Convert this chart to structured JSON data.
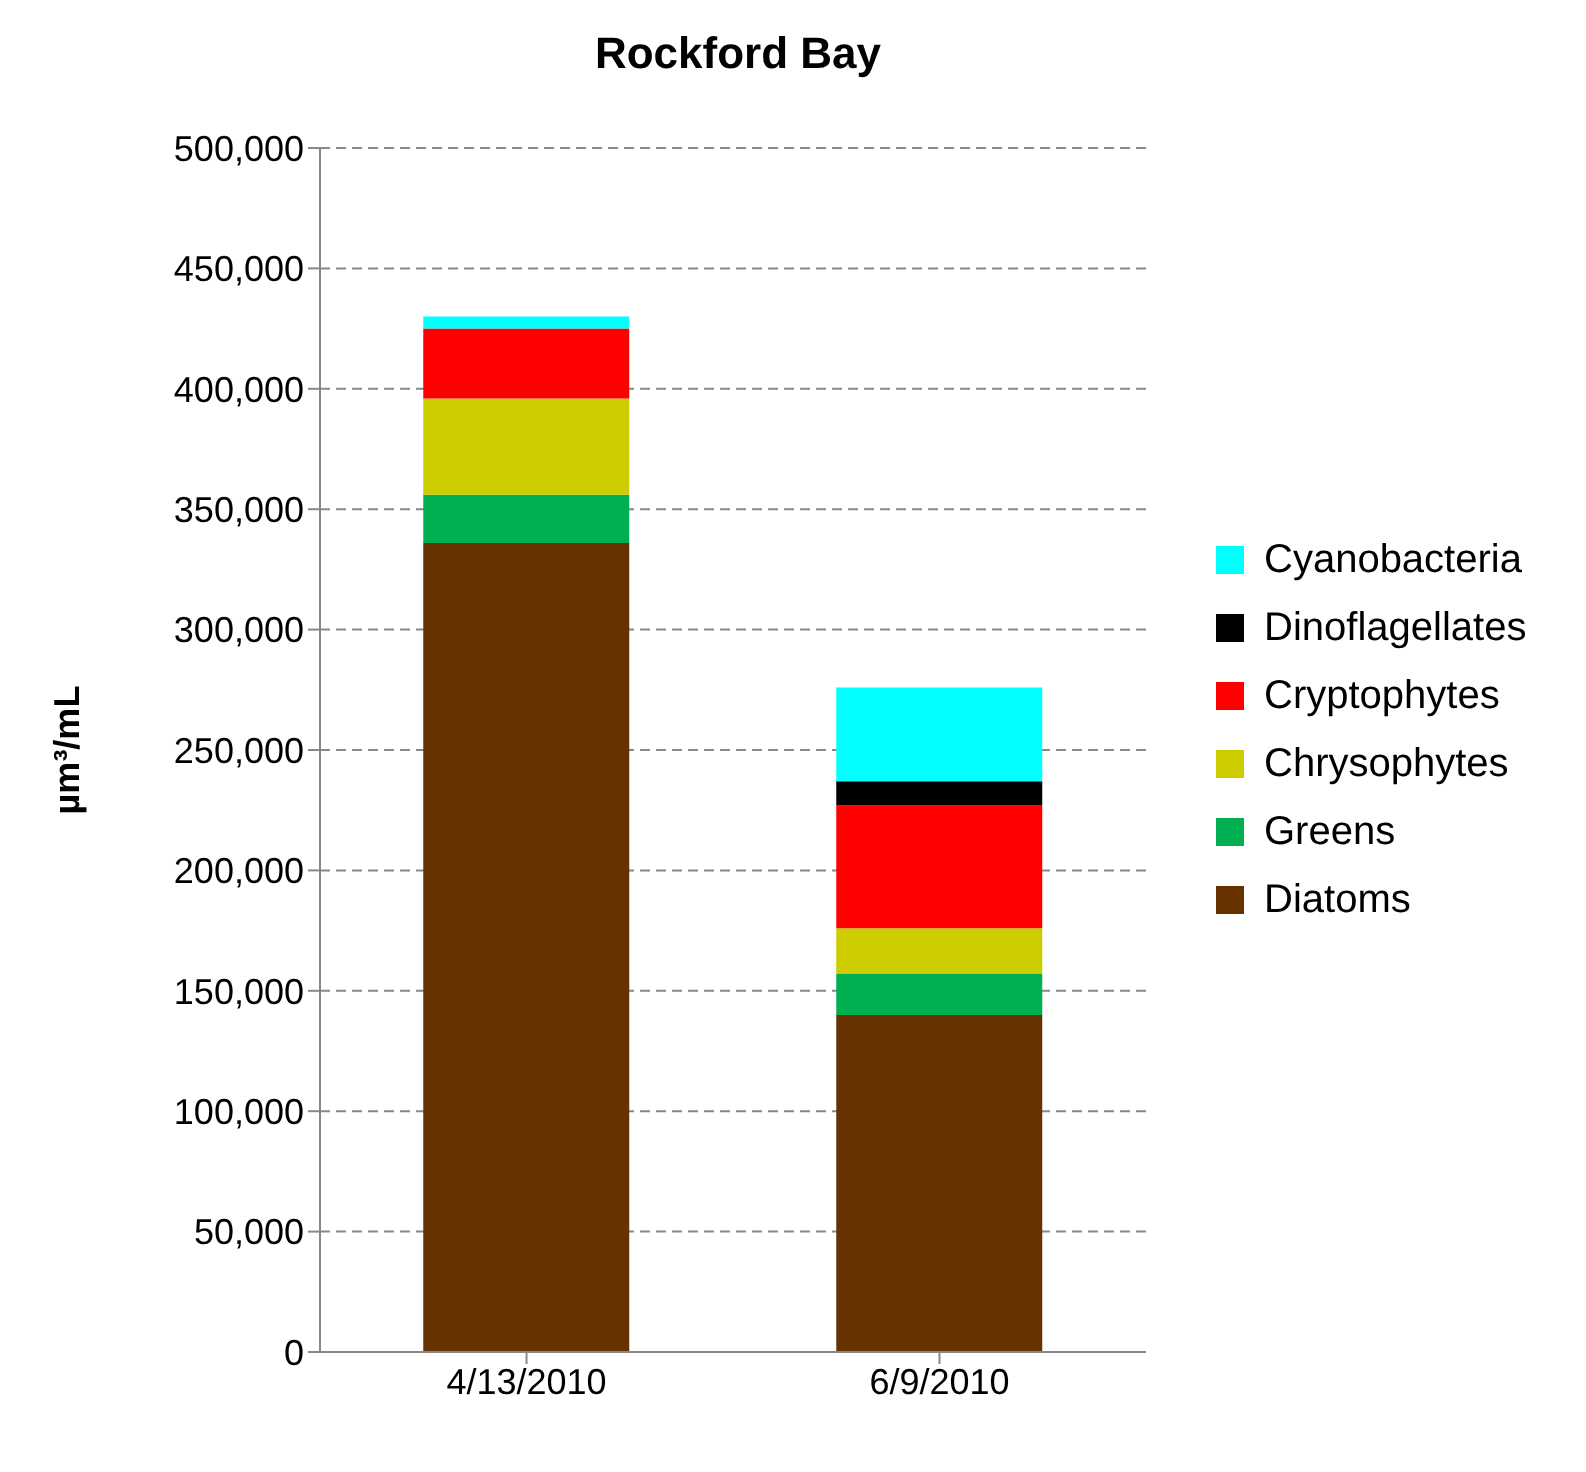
{
  "chart_data": {
    "type": "bar",
    "title": "Rockford Bay",
    "ylabel": "µm³/mL",
    "categories": [
      "4/13/2010",
      "6/9/2010"
    ],
    "stacked": true,
    "series": [
      {
        "name": "Diatoms",
        "color": "#663300",
        "values": [
          336000,
          140000
        ]
      },
      {
        "name": "Greens",
        "color": "#00b050",
        "values": [
          20000,
          17000
        ]
      },
      {
        "name": "Chrysophytes",
        "color": "#cccc00",
        "values": [
          40000,
          19000
        ]
      },
      {
        "name": "Cryptophytes",
        "color": "#ff0000",
        "values": [
          29000,
          51000
        ]
      },
      {
        "name": "Dinoflagellates",
        "color": "#000000",
        "values": [
          0,
          10000
        ]
      },
      {
        "name": "Cyanobacteria",
        "color": "#00ffff",
        "values": [
          5000,
          39000
        ]
      }
    ],
    "ylim": [
      0,
      500000
    ],
    "yticks": [
      0,
      {
        "value": 50000,
        "label": "50,000"
      },
      {
        "value": 100000,
        "label": "100,000"
      },
      {
        "value": 150000,
        "label": "150,000"
      },
      {
        "value": 200000,
        "label": "200,000"
      },
      {
        "value": 250000,
        "label": "250,000"
      },
      {
        "value": 300000,
        "label": "300,000"
      },
      {
        "value": 350000,
        "label": "350,000"
      },
      {
        "value": 400000,
        "label": "400,000"
      },
      {
        "value": 450000,
        "label": "450,000"
      },
      {
        "value": 500000,
        "label": "500,000"
      }
    ],
    "grid": "y",
    "legend": "right"
  }
}
